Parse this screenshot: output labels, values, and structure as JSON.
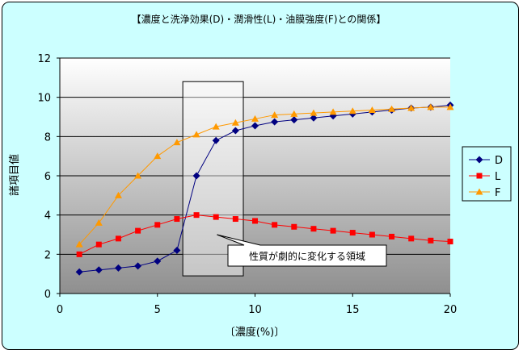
{
  "chart_data": {
    "type": "line",
    "title": "【濃度と洗浄効果(D)・潤滑性(L)・油膜強度(F)との関係】",
    "xlabel": "〔濃度(%)〕",
    "ylabel": "諸項目値",
    "xlim": [
      0,
      20
    ],
    "ylim": [
      0,
      12
    ],
    "xticks": [
      0,
      5,
      10,
      15,
      20
    ],
    "yticks": [
      0,
      2,
      4,
      6,
      8,
      10,
      12
    ],
    "grid": true,
    "legend_position": "right",
    "series": [
      {
        "name": "D",
        "color": "#000080",
        "marker": "diamond",
        "x": [
          1,
          2,
          3,
          4,
          5,
          6,
          7,
          8,
          9,
          10,
          11,
          12,
          13,
          14,
          15,
          16,
          17,
          18,
          19,
          20
        ],
        "values": [
          1.1,
          1.2,
          1.3,
          1.4,
          1.65,
          2.2,
          6.0,
          7.8,
          8.3,
          8.55,
          8.75,
          8.85,
          8.95,
          9.05,
          9.15,
          9.25,
          9.35,
          9.45,
          9.5,
          9.6
        ]
      },
      {
        "name": "L",
        "color": "#ff0000",
        "marker": "square",
        "x": [
          1,
          2,
          3,
          4,
          5,
          6,
          7,
          8,
          9,
          10,
          11,
          12,
          13,
          14,
          15,
          16,
          17,
          18,
          19,
          20
        ],
        "values": [
          2.0,
          2.5,
          2.8,
          3.2,
          3.5,
          3.8,
          4.0,
          3.9,
          3.8,
          3.7,
          3.5,
          3.4,
          3.3,
          3.2,
          3.1,
          3.0,
          2.9,
          2.8,
          2.7,
          2.65
        ]
      },
      {
        "name": "F",
        "color": "#ff9900",
        "marker": "triangle",
        "x": [
          1,
          2,
          3,
          4,
          5,
          6,
          7,
          8,
          9,
          10,
          11,
          12,
          13,
          14,
          15,
          16,
          17,
          18,
          19,
          20
        ],
        "values": [
          2.5,
          3.6,
          5.0,
          6.0,
          7.0,
          7.7,
          8.1,
          8.5,
          8.7,
          8.9,
          9.1,
          9.15,
          9.2,
          9.25,
          9.3,
          9.35,
          9.4,
          9.45,
          9.5,
          9.5
        ]
      }
    ],
    "annotation": {
      "text": "性質が劇的に変化する領域",
      "x_range": [
        6.3,
        9.4
      ],
      "y_range": [
        0.9,
        10.8
      ],
      "pointer_at": [
        8.3,
        3.0
      ]
    }
  },
  "colors": {
    "page_background": "#ccffff",
    "plot_top": "#ffffff",
    "plot_bottom": "#8f8f8f"
  }
}
